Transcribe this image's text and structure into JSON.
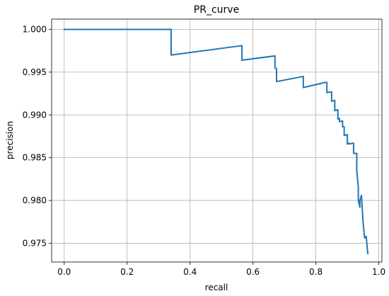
{
  "chart_data": {
    "type": "line",
    "title": "PR_curve",
    "xlabel": "recall",
    "ylabel": "precision",
    "xlim": [
      -0.04,
      1.01
    ],
    "ylim": [
      0.9728,
      1.0012
    ],
    "x_ticks": [
      0.0,
      0.2,
      0.4,
      0.6,
      0.8,
      1.0
    ],
    "x_tick_labels": [
      "0.0",
      "0.2",
      "0.4",
      "0.6",
      "0.8",
      "1.0"
    ],
    "y_ticks": [
      0.975,
      0.98,
      0.985,
      0.99,
      0.995,
      1.0
    ],
    "y_tick_labels": [
      "0.975",
      "0.980",
      "0.985",
      "0.990",
      "0.995",
      "1.000"
    ],
    "grid": true,
    "line_color": "#1f77b4",
    "series": [
      {
        "x": [
          0.0,
          0.34,
          0.34,
          0.565,
          0.565,
          0.67,
          0.67,
          0.675,
          0.675,
          0.76,
          0.76,
          0.83,
          0.835,
          0.835,
          0.85,
          0.85,
          0.86,
          0.86,
          0.87,
          0.87,
          0.875,
          0.875,
          0.885,
          0.885,
          0.89,
          0.89,
          0.9,
          0.9,
          0.905,
          0.905,
          0.92,
          0.92,
          0.93,
          0.93,
          0.935,
          0.935,
          0.94,
          0.94,
          0.945,
          0.945,
          0.95,
          0.95,
          0.955,
          0.955,
          0.96,
          0.96,
          0.965,
          0.965
        ],
        "y": [
          1.0,
          1.0,
          0.997,
          0.9981,
          0.9964,
          0.9969,
          0.9955,
          0.9954,
          0.9939,
          0.9945,
          0.9932,
          0.9938,
          0.9938,
          0.9926,
          0.9927,
          0.9916,
          0.9917,
          0.9905,
          0.9906,
          0.9895,
          0.9896,
          0.9892,
          0.9893,
          0.9886,
          0.9886,
          0.9876,
          0.9877,
          0.9866,
          0.9867,
          0.9866,
          0.9867,
          0.9855,
          0.9855,
          0.9835,
          0.9815,
          0.98,
          0.9792,
          0.98,
          0.9806,
          0.9806,
          0.9775,
          0.9775,
          0.9756,
          0.9756,
          0.9758,
          0.9758,
          0.9738,
          0.9738
        ]
      }
    ]
  }
}
